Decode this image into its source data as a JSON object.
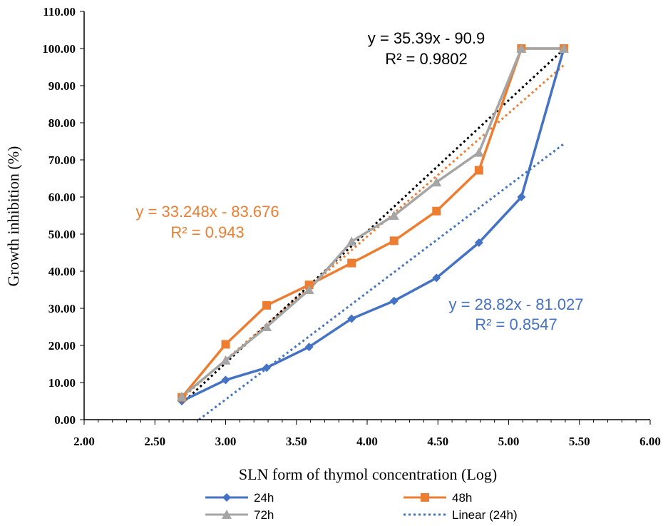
{
  "chart_data": {
    "type": "line",
    "xlabel": "SLN form of thymol concentration (Log)",
    "ylabel": "Growth inhibition (%)",
    "xlim": [
      2.0,
      6.0
    ],
    "ylim": [
      0.0,
      110.0
    ],
    "x_ticks": [
      "2.00",
      "2.50",
      "3.00",
      "3.50",
      "4.00",
      "4.50",
      "5.00",
      "5.50",
      "6.00"
    ],
    "y_ticks": [
      "0.00",
      "10.00",
      "20.00",
      "30.00",
      "40.00",
      "50.00",
      "60.00",
      "70.00",
      "80.00",
      "90.00",
      "100.00",
      "110.00"
    ],
    "grid": false,
    "legend_position": "bottom",
    "x": [
      2.69,
      3.0,
      3.29,
      3.59,
      3.89,
      4.19,
      4.49,
      4.79,
      5.09,
      5.39
    ],
    "series": [
      {
        "name": "24h",
        "color": "#4472C4",
        "marker": "diamond",
        "values": [
          5.0,
          10.7,
          14.0,
          19.6,
          27.2,
          32.0,
          38.2,
          47.7,
          60.0,
          100.0
        ]
      },
      {
        "name": "48h",
        "color": "#ED7D31",
        "marker": "square",
        "values": [
          6.0,
          20.3,
          30.8,
          36.3,
          42.2,
          48.2,
          56.2,
          67.2,
          100.0,
          100.0
        ]
      },
      {
        "name": "72h",
        "color": "#A5A5A5",
        "marker": "triangle",
        "values": [
          6.2,
          16.0,
          25.0,
          35.0,
          48.0,
          55.0,
          64.0,
          72.0,
          100.0,
          100.0
        ]
      }
    ],
    "trendlines": [
      {
        "name": "Linear (24h)",
        "color": "#4472C4",
        "slope": 28.82,
        "intercept": -81.027,
        "equation": "y = 28.82x - 81.027",
        "r2": "R² = 0.8547"
      },
      {
        "color": "#ED7D31",
        "slope": 33.248,
        "intercept": -83.676,
        "equation": "y = 33.248x - 83.676",
        "r2": "R² = 0.943"
      },
      {
        "color": "#000000",
        "slope": 35.39,
        "intercept": -90.9,
        "equation": "y = 35.39x - 90.9",
        "r2": "R² = 0.9802"
      }
    ],
    "legend": [
      "24h",
      "48h",
      "72h",
      "Linear (24h)"
    ]
  }
}
